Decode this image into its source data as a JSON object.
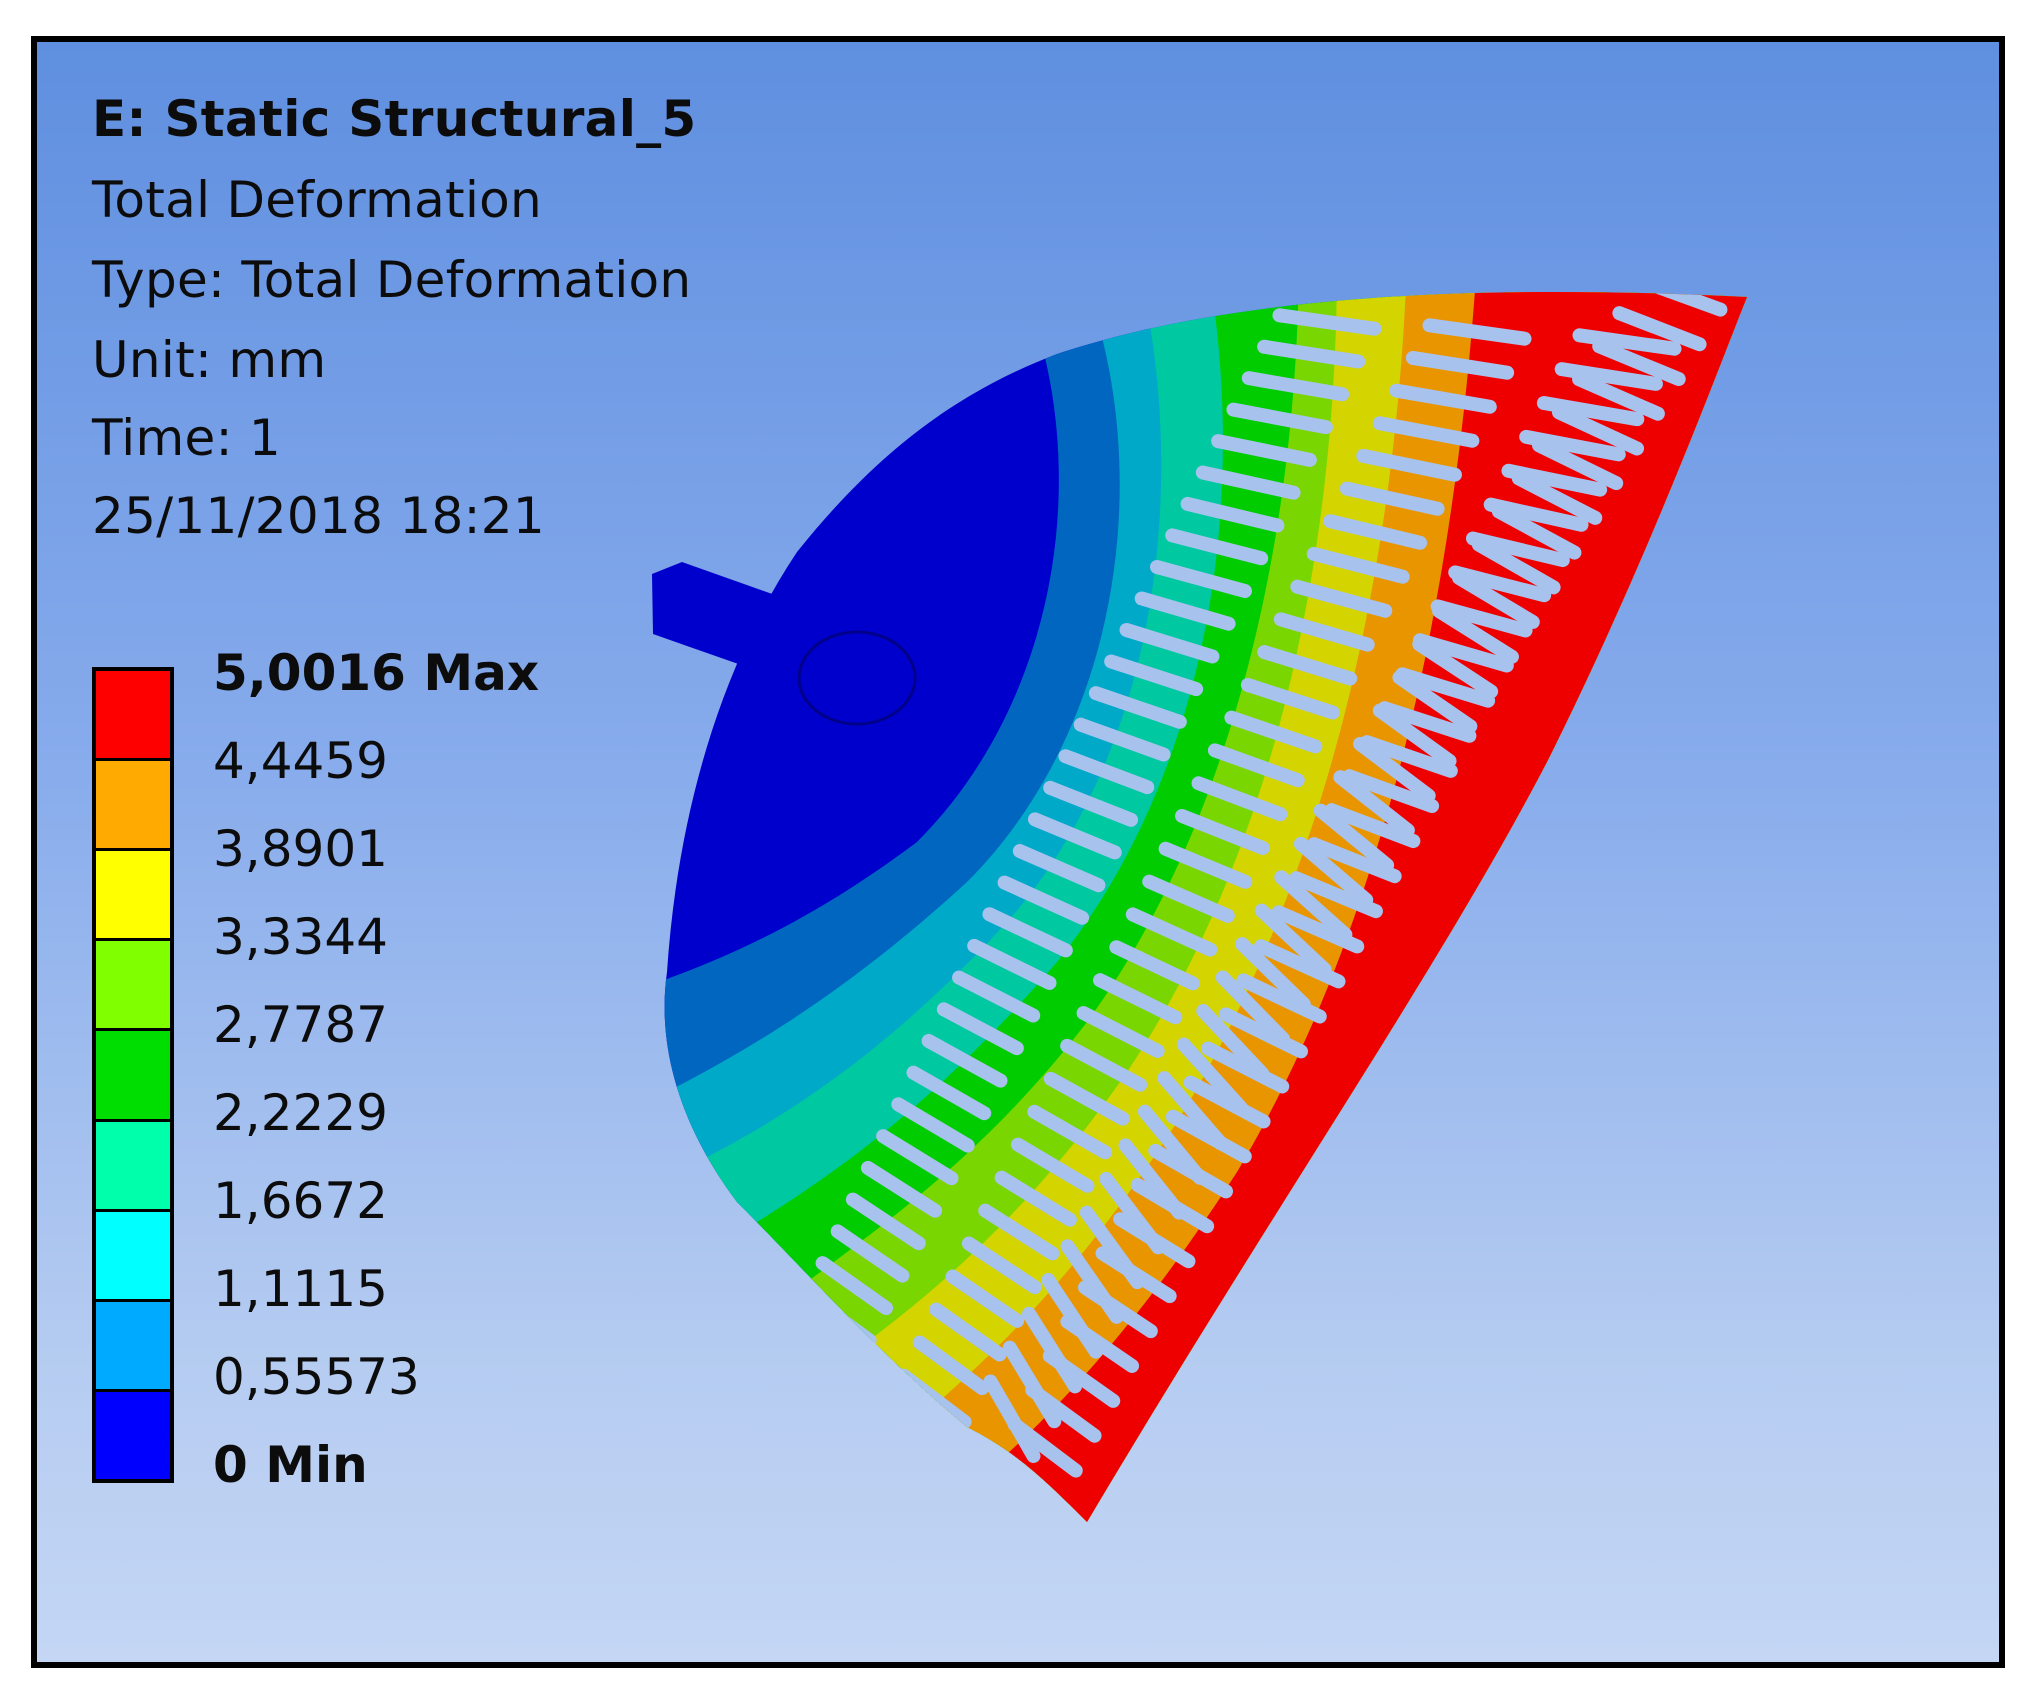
{
  "header": {
    "title": "E: Static Structural_5",
    "result_name": "Total Deformation",
    "type_line": "Type: Total Deformation",
    "unit_line": "Unit: mm",
    "time_line": "Time: 1",
    "date_line": "25/11/2018 18:21"
  },
  "legend": {
    "labels": [
      "5,0016 Max",
      "4,4459",
      "3,8901",
      "3,3344",
      "2,7787",
      "2,2229",
      "1,6672",
      "1,1115",
      "0,55573",
      "0 Min"
    ],
    "colors": [
      "#ff0000",
      "#ffaa00",
      "#ffff00",
      "#80ff00",
      "#00dd00",
      "#00ffaa",
      "#00ffff",
      "#00aaff",
      "#0000ff"
    ]
  },
  "model": {
    "name": "deformed-fan-segment",
    "colors": {
      "hub": "#0000cc",
      "band1": "#0066c0",
      "band2": "#00a9c8",
      "band3": "#00c8a0",
      "band4": "#00cc00",
      "band5": "#7ad600",
      "band6": "#d4d400",
      "band7": "#e89500",
      "band8": "#ee0000",
      "slot": "#a8c2ee"
    }
  }
}
